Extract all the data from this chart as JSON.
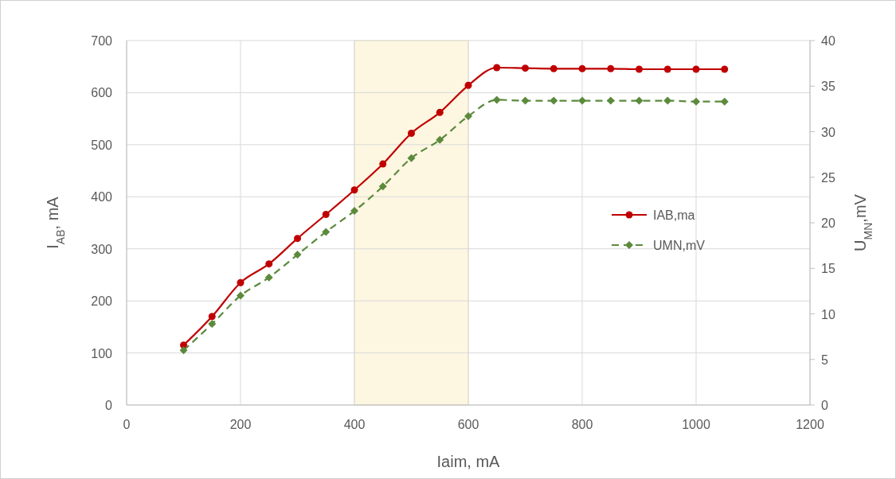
{
  "chart_data": {
    "type": "line",
    "xlabel": "Iaim, mA",
    "ylabel": "I$_{AB}$, mA",
    "y2label": "U$_{MN}$,mV",
    "x": [
      100,
      150,
      200,
      250,
      300,
      350,
      400,
      450,
      500,
      550,
      600,
      650,
      700,
      750,
      800,
      850,
      900,
      950,
      1000,
      1050
    ],
    "series": [
      {
        "name": "IAB,ma",
        "color": "#c00000",
        "marker": "circle",
        "line_style": "solid",
        "values": [
          115,
          170,
          235,
          271,
          320,
          366,
          413,
          463,
          522,
          562,
          614,
          648,
          647,
          646,
          646,
          646,
          645,
          645,
          645,
          645
        ]
      },
      {
        "name": "UMN,mV",
        "color": "#5b8a3c",
        "marker": "diamond",
        "line_style": "dashed",
        "axis": "y2",
        "values": [
          6.0,
          8.9,
          12.0,
          14.0,
          16.5,
          19.0,
          21.3,
          24.0,
          27.1,
          29.1,
          31.7,
          33.5,
          33.4,
          33.4,
          33.4,
          33.4,
          33.4,
          33.4,
          33.3,
          33.3
        ]
      }
    ],
    "xlim": [
      0,
      1200
    ],
    "xticks": [
      0,
      200,
      400,
      600,
      800,
      1000,
      1200
    ],
    "ylim": [
      0,
      700
    ],
    "yticks": [
      0,
      100,
      200,
      300,
      400,
      500,
      600,
      700
    ],
    "y2lim": [
      0,
      40
    ],
    "y2ticks": [
      0,
      5,
      10,
      15,
      20,
      25,
      30,
      35,
      40
    ],
    "bands": [
      {
        "axis": "x",
        "from": 400,
        "to": 600,
        "color": "#fdf6e1"
      }
    ],
    "grid": true,
    "legend": "right"
  }
}
